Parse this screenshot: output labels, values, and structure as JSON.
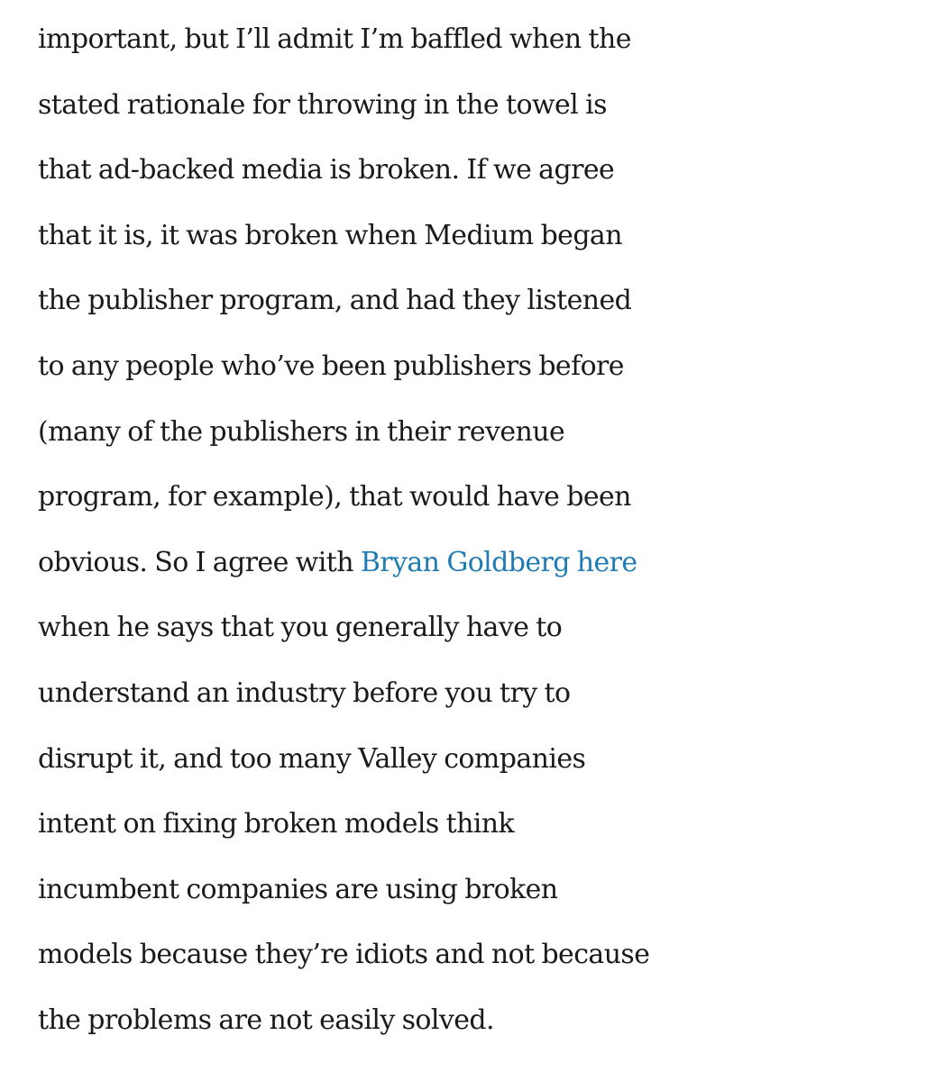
{
  "article": {
    "lines": [
      "important, but I’ll admit I’m baffled when the",
      "stated rationale for throwing in the towel is",
      "that ad-backed media is broken. If we agree",
      "that it is, it was broken when Medium began",
      "the publisher program, and had they listened",
      "to any people who’ve been publishers before",
      "(many of the publishers in their revenue",
      "program, for example), that would have been",
      "obvious. So I agree with ",
      "when he says that you generally have to",
      "understand an industry before you try to",
      "disrupt it, and too many Valley companies",
      "intent on fixing broken models think",
      "incumbent companies are using broken",
      "models because they’re idiots and not because",
      "the problems are not easily solved."
    ],
    "link_text": "Bryan Goldberg here",
    "link_color": "#1f7bb3",
    "text_color": "#1a1a1a"
  }
}
